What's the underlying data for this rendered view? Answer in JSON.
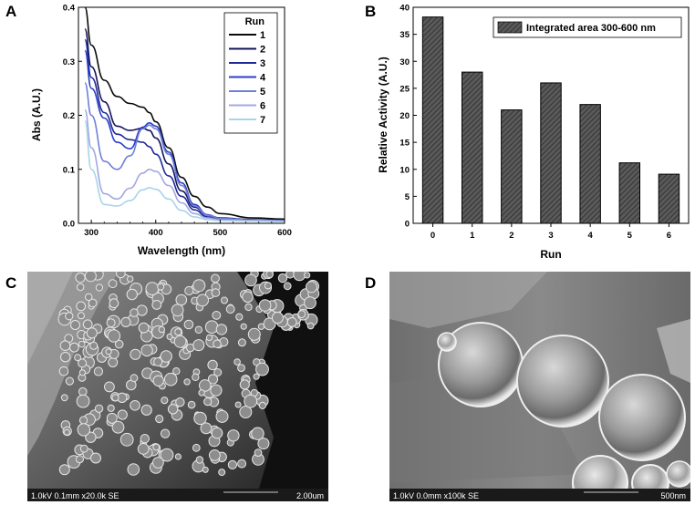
{
  "panels": {
    "a": "A",
    "b": "B",
    "c": "C",
    "d": "D"
  },
  "chart_data": [
    {
      "type": "line",
      "xlabel": "Wavelength (nm)",
      "ylabel": "Abs (A.U.)",
      "xlim": [
        280,
        600
      ],
      "ylim": [
        0,
        0.4
      ],
      "xticks": [
        "300",
        "400",
        "500",
        "600"
      ],
      "yticks": [
        "0.0",
        "0.1",
        "0.2",
        "0.3",
        "0.4"
      ],
      "legend_title": "Run",
      "legend_placement": "top-right",
      "x": [
        290,
        300,
        320,
        340,
        360,
        380,
        390,
        400,
        420,
        440,
        460,
        480,
        500,
        550,
        600
      ],
      "series": [
        {
          "name": "1",
          "color": "#0a0a0a",
          "values": [
            0.4,
            0.33,
            0.265,
            0.235,
            0.222,
            0.215,
            0.205,
            0.188,
            0.14,
            0.085,
            0.05,
            0.03,
            0.018,
            0.01,
            0.008
          ]
        },
        {
          "name": "2",
          "color": "#14145a",
          "values": [
            0.36,
            0.29,
            0.225,
            0.18,
            0.172,
            0.176,
            0.172,
            0.158,
            0.11,
            0.06,
            0.03,
            0.015,
            0.01,
            0.007,
            0.006
          ]
        },
        {
          "name": "3",
          "color": "#1e2a9a",
          "values": [
            0.34,
            0.27,
            0.205,
            0.165,
            0.155,
            0.15,
            0.142,
            0.128,
            0.088,
            0.05,
            0.025,
            0.012,
            0.008,
            0.006,
            0.005
          ]
        },
        {
          "name": "4",
          "color": "#2a3fc8",
          "values": [
            0.32,
            0.25,
            0.195,
            0.15,
            0.138,
            0.178,
            0.186,
            0.18,
            0.132,
            0.075,
            0.035,
            0.016,
            0.009,
            0.006,
            0.005
          ]
        },
        {
          "name": "5",
          "color": "#6f7fd8",
          "values": [
            0.26,
            0.2,
            0.115,
            0.1,
            0.125,
            0.175,
            0.182,
            0.175,
            0.128,
            0.07,
            0.032,
            0.015,
            0.009,
            0.006,
            0.005
          ]
        },
        {
          "name": "6",
          "color": "#a3a8e0",
          "values": [
            0.21,
            0.14,
            0.055,
            0.045,
            0.065,
            0.093,
            0.1,
            0.096,
            0.07,
            0.038,
            0.018,
            0.01,
            0.006,
            0.005,
            0.004
          ]
        },
        {
          "name": "7",
          "color": "#a9d3ea",
          "values": [
            0.19,
            0.1,
            0.035,
            0.032,
            0.042,
            0.062,
            0.066,
            0.063,
            0.045,
            0.024,
            0.012,
            0.007,
            0.005,
            0.004,
            0.003
          ]
        }
      ]
    },
    {
      "type": "bar",
      "xlabel": "Run",
      "ylabel": "Relative Activity (A.U.)",
      "ylim": [
        0,
        40
      ],
      "yticks": [
        "0",
        "5",
        "10",
        "15",
        "20",
        "25",
        "30",
        "35",
        "40"
      ],
      "categories": [
        "0",
        "1",
        "2",
        "3",
        "4",
        "5",
        "6"
      ],
      "series": [
        {
          "name": "Integrated area 300-600 nm",
          "values": [
            38.2,
            28.0,
            21.0,
            26.0,
            22.0,
            11.2,
            9.1
          ]
        }
      ],
      "legend_placement": "top-right",
      "bar_color": "#555555"
    }
  ],
  "images": {
    "c": {
      "caption_left": "1.0kV 0.1mm x20.0k SE",
      "caption_right": "2.00um"
    },
    "d": {
      "caption_left": "1.0kV 0.0mm x100k SE",
      "caption_right": "500nm"
    }
  }
}
